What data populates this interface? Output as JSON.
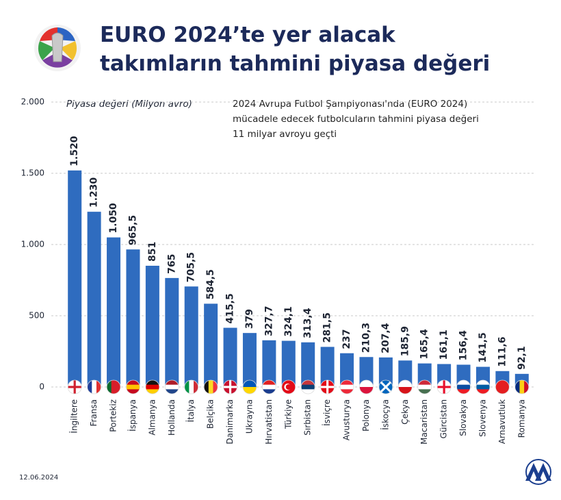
{
  "chart_data": {
    "type": "bar",
    "title": [
      "EURO 2024’te yer alacak",
      "takımların tahmini piyasa değeri"
    ],
    "subtitle": [
      "2024 Avrupa Futbol Şampiyonası'nda (EURO 2024)",
      "mücadele edecek futbolcuların tahmini piyasa değeri",
      "11 milyar avroyu geçti"
    ],
    "y_label": "Piyasa değeri (Milyon avro)",
    "date": "12.06.2024",
    "categories": [
      "İngiltere",
      "Fransa",
      "Portekiz",
      "İspanya",
      "Almanya",
      "Hollanda",
      "İtalya",
      "Belçika",
      "Danimarka",
      "Ukrayna",
      "Hırvatistan",
      "Türkiye",
      "Sırbistan",
      "İsviçre",
      "Avusturya",
      "Polonya",
      "İskoçya",
      "Çekya",
      "Macaristan",
      "Gürcistan",
      "Slovakya",
      "Slovenya",
      "Arnavutluk",
      "Romanya"
    ],
    "values": [
      1520,
      1230,
      1050,
      965.5,
      851,
      765,
      705.5,
      584.5,
      415.5,
      379,
      327.7,
      324.1,
      313.4,
      281.5,
      237,
      210.3,
      207.4,
      185.9,
      165.4,
      161.1,
      156.4,
      141.5,
      111.6,
      92.1
    ],
    "value_labels": [
      "1.520",
      "1.230",
      "1.050",
      "965,5",
      "851",
      "765",
      "705,5",
      "584,5",
      "415,5",
      "379",
      "327,7",
      "324,1",
      "313,4",
      "281,5",
      "237",
      "210,3",
      "207,4",
      "185,9",
      "165,4",
      "161,1",
      "156,4",
      "141,5",
      "111,6",
      "92,1"
    ],
    "color": "#2f6cbf",
    "ylim": [
      0,
      2000
    ],
    "yticks": [
      {
        "value": 0,
        "label": "0"
      },
      {
        "value": 500,
        "label": "500"
      },
      {
        "value": 1000,
        "label": "1.000"
      },
      {
        "value": 1500,
        "label": "1.500"
      },
      {
        "value": 2000,
        "label": "2.000"
      }
    ],
    "grid": true
  }
}
